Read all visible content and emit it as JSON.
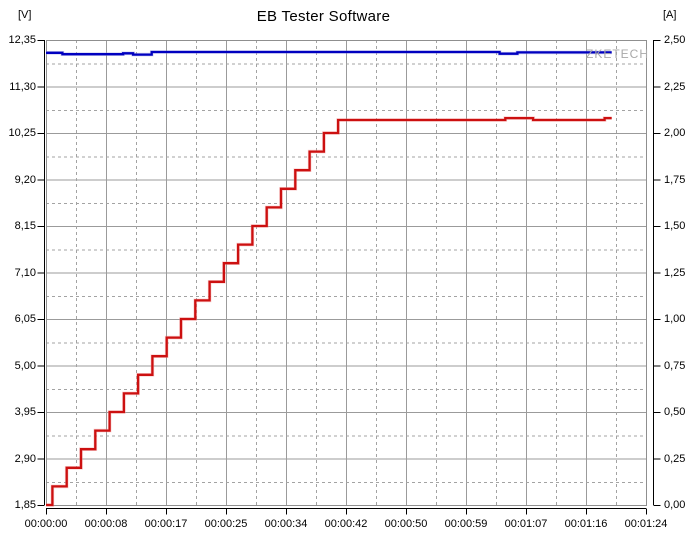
{
  "chart_data": {
    "type": "line",
    "title": "EB Tester Software",
    "watermark": "ZKETECH",
    "x_axis": {
      "min_seconds": 0,
      "max_seconds": 84,
      "tick_labels": [
        "00:00:00",
        "00:00:08",
        "00:00:17",
        "00:00:25",
        "00:00:34",
        "00:00:42",
        "00:00:50",
        "00:00:59",
        "00:01:07",
        "00:01:16",
        "00:01:24"
      ]
    },
    "left_axis": {
      "unit_label": "[V]",
      "min": 1.85,
      "max": 12.35,
      "tick_labels": [
        "12,35",
        "11,30",
        "10,25",
        "9,20",
        "8,15",
        "7,10",
        "6,05",
        "5,00",
        "3,95",
        "2,90",
        "1,85"
      ]
    },
    "right_axis": {
      "unit_label": "[A]",
      "min": 0.0,
      "max": 2.5,
      "tick_labels": [
        "2,50",
        "2,25",
        "2,00",
        "1,75",
        "1,50",
        "1,25",
        "1,00",
        "0,75",
        "0,50",
        "0,25",
        "0,00"
      ]
    },
    "grid": {
      "solid_color": "#9b9b9b",
      "dashed_color": "#a3a3a3",
      "border_color": "#8f8f8f",
      "half_step_dashed": true,
      "legend": "none"
    },
    "series": [
      {
        "name": "voltage",
        "axis": "left",
        "color": "#0000c0",
        "halo": "#9a9ae0",
        "points": [
          [
            0,
            12.06
          ],
          [
            2.3,
            12.06
          ],
          [
            2.3,
            12.03
          ],
          [
            10.8,
            12.03
          ],
          [
            10.8,
            12.05
          ],
          [
            12.2,
            12.05
          ],
          [
            12.2,
            12.02
          ],
          [
            14.8,
            12.02
          ],
          [
            14.8,
            12.08
          ],
          [
            63.5,
            12.08
          ],
          [
            63.5,
            12.04
          ],
          [
            66.0,
            12.04
          ],
          [
            66.0,
            12.07
          ],
          [
            79.2,
            12.07
          ]
        ]
      },
      {
        "name": "current",
        "axis": "right",
        "color": "#cc1010",
        "halo": "#f59a9a",
        "points": [
          [
            0,
            0
          ],
          [
            0.9,
            0
          ],
          [
            0.9,
            0.1
          ],
          [
            2.9,
            0.1
          ],
          [
            2.9,
            0.2
          ],
          [
            4.9,
            0.2
          ],
          [
            4.9,
            0.3
          ],
          [
            6.9,
            0.3
          ],
          [
            6.9,
            0.4
          ],
          [
            8.9,
            0.4
          ],
          [
            8.9,
            0.5
          ],
          [
            10.9,
            0.5
          ],
          [
            10.9,
            0.6
          ],
          [
            12.9,
            0.6
          ],
          [
            12.9,
            0.7
          ],
          [
            14.9,
            0.7
          ],
          [
            14.9,
            0.8
          ],
          [
            16.9,
            0.8
          ],
          [
            16.9,
            0.9
          ],
          [
            18.9,
            0.9
          ],
          [
            18.9,
            1.0
          ],
          [
            20.9,
            1.0
          ],
          [
            20.9,
            1.1
          ],
          [
            22.9,
            1.1
          ],
          [
            22.9,
            1.2
          ],
          [
            24.9,
            1.2
          ],
          [
            24.9,
            1.3
          ],
          [
            26.9,
            1.3
          ],
          [
            26.9,
            1.4
          ],
          [
            28.9,
            1.4
          ],
          [
            28.9,
            1.5
          ],
          [
            30.9,
            1.5
          ],
          [
            30.9,
            1.6
          ],
          [
            32.9,
            1.6
          ],
          [
            32.9,
            1.7
          ],
          [
            34.9,
            1.7
          ],
          [
            34.9,
            1.8
          ],
          [
            36.9,
            1.8
          ],
          [
            36.9,
            1.9
          ],
          [
            38.9,
            1.9
          ],
          [
            38.9,
            2.0
          ],
          [
            40.9,
            2.0
          ],
          [
            40.9,
            2.07
          ],
          [
            64.3,
            2.07
          ],
          [
            64.3,
            2.08
          ],
          [
            68.2,
            2.08
          ],
          [
            68.2,
            2.07
          ],
          [
            78.2,
            2.07
          ],
          [
            78.2,
            2.08
          ],
          [
            79.2,
            2.08
          ]
        ]
      }
    ]
  }
}
